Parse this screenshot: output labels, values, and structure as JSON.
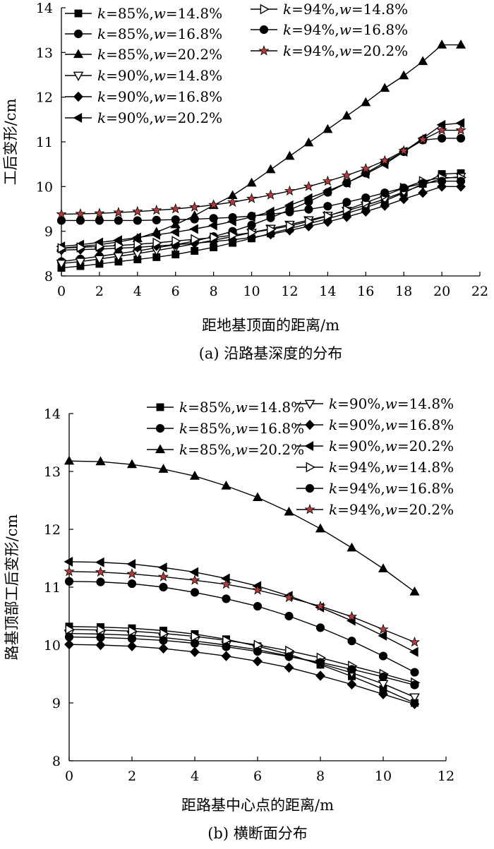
{
  "chart_data": [
    {
      "type": "line",
      "caption": "(a) 沿路基深度的分布",
      "xlabel": "距地基顶面的距离/m",
      "ylabel": "工后变形/cm",
      "xlim": [
        0,
        22
      ],
      "ylim": [
        8,
        14
      ],
      "xticks": [
        0,
        2,
        4,
        6,
        8,
        10,
        12,
        14,
        16,
        18,
        20,
        22
      ],
      "yticks": [
        8,
        9,
        10,
        11,
        12,
        13,
        14
      ],
      "x": [
        0,
        1,
        2,
        3,
        4,
        5,
        6,
        7,
        8,
        9,
        10,
        11,
        12,
        13,
        14,
        15,
        16,
        17,
        18,
        19,
        20,
        21
      ],
      "series": [
        {
          "k": "85%",
          "w": "14.8%",
          "marker": "square",
          "values": [
            8.18,
            8.22,
            8.27,
            8.32,
            8.37,
            8.42,
            8.48,
            8.56,
            8.64,
            8.74,
            8.84,
            8.95,
            9.06,
            9.17,
            9.28,
            9.4,
            9.53,
            9.68,
            9.86,
            10.06,
            10.28,
            10.3
          ]
        },
        {
          "k": "85%",
          "w": "16.8%",
          "marker": "circle",
          "values": [
            8.32,
            8.38,
            8.44,
            8.5,
            8.56,
            8.63,
            8.7,
            8.78,
            8.88,
            9.0,
            9.14,
            9.3,
            9.48,
            9.66,
            9.87,
            10.08,
            10.3,
            10.54,
            10.78,
            11.04,
            11.08,
            11.08
          ]
        },
        {
          "k": "85%",
          "w": "20.2%",
          "marker": "triangle",
          "values": [
            8.62,
            8.66,
            8.7,
            8.76,
            8.84,
            8.98,
            9.15,
            9.35,
            9.58,
            9.8,
            10.08,
            10.38,
            10.68,
            10.98,
            11.28,
            11.58,
            11.88,
            12.2,
            12.48,
            12.8,
            13.17,
            13.17
          ]
        },
        {
          "k": "90%",
          "w": "14.8%",
          "marker": "tri-down-open",
          "values": [
            8.28,
            8.32,
            8.38,
            8.44,
            8.5,
            8.57,
            8.64,
            8.72,
            8.8,
            8.88,
            8.97,
            9.06,
            9.15,
            9.25,
            9.35,
            9.46,
            9.58,
            9.72,
            9.88,
            10.04,
            10.18,
            10.22
          ]
        },
        {
          "k": "90%",
          "w": "16.8%",
          "marker": "diamond",
          "values": [
            8.58,
            8.59,
            8.6,
            8.62,
            8.64,
            8.67,
            8.7,
            8.73,
            8.77,
            8.81,
            8.86,
            8.93,
            9.02,
            9.11,
            9.21,
            9.32,
            9.44,
            9.57,
            9.72,
            9.86,
            10.0,
            10.0
          ]
        },
        {
          "k": "90%",
          "w": "20.2%",
          "marker": "tri-left",
          "values": [
            8.66,
            8.7,
            8.75,
            8.8,
            8.86,
            8.92,
            8.98,
            9.05,
            9.13,
            9.22,
            9.32,
            9.44,
            9.58,
            9.74,
            9.9,
            10.08,
            10.28,
            10.5,
            10.78,
            11.08,
            11.38,
            11.42
          ]
        },
        {
          "k": "94%",
          "w": "14.8%",
          "marker": "tri-right-open",
          "values": [
            8.62,
            8.64,
            8.66,
            8.68,
            8.71,
            8.74,
            8.78,
            8.82,
            8.86,
            8.91,
            8.97,
            9.04,
            9.12,
            9.22,
            9.34,
            9.48,
            9.64,
            9.8,
            9.97,
            10.12,
            10.2,
            10.2
          ]
        },
        {
          "k": "94%",
          "w": "16.8%",
          "marker": "circle",
          "values": [
            9.24,
            9.24,
            9.24,
            9.24,
            9.24,
            9.25,
            9.26,
            9.27,
            9.29,
            9.31,
            9.34,
            9.38,
            9.43,
            9.49,
            9.56,
            9.65,
            9.75,
            9.86,
            9.97,
            10.07,
            10.12,
            10.12
          ]
        },
        {
          "k": "94%",
          "w": "20.2%",
          "marker": "star",
          "values": [
            9.38,
            9.39,
            9.4,
            9.42,
            9.44,
            9.47,
            9.5,
            9.54,
            9.59,
            9.65,
            9.73,
            9.81,
            9.9,
            10.0,
            10.12,
            10.25,
            10.4,
            10.58,
            10.8,
            11.05,
            11.26,
            11.26
          ]
        }
      ]
    },
    {
      "type": "line",
      "caption": "(b) 横断面分布",
      "xlabel": "距路基中心点的距离/m",
      "ylabel": "路基顶部工后变形/cm",
      "xlim": [
        0,
        12
      ],
      "ylim": [
        8,
        14
      ],
      "xticks": [
        0,
        2,
        4,
        6,
        8,
        10,
        12
      ],
      "yticks": [
        8,
        9,
        10,
        11,
        12,
        13,
        14
      ],
      "x": [
        0,
        1,
        2,
        3,
        4,
        5,
        6,
        7,
        8,
        9,
        10,
        11
      ],
      "series": [
        {
          "k": "85%",
          "w": "14.8%",
          "marker": "square",
          "values": [
            10.32,
            10.31,
            10.29,
            10.25,
            10.19,
            10.1,
            9.98,
            9.84,
            9.66,
            9.46,
            9.24,
            9.0
          ]
        },
        {
          "k": "85%",
          "w": "16.8%",
          "marker": "circle",
          "values": [
            11.1,
            11.09,
            11.06,
            11.0,
            10.91,
            10.8,
            10.67,
            10.5,
            10.3,
            10.07,
            9.81,
            9.53
          ]
        },
        {
          "k": "85%",
          "w": "20.2%",
          "marker": "triangle",
          "values": [
            13.18,
            13.17,
            13.12,
            13.04,
            12.92,
            12.75,
            12.55,
            12.3,
            12.01,
            11.68,
            11.32,
            10.92
          ]
        },
        {
          "k": "90%",
          "w": "14.8%",
          "marker": "tri-down-open",
          "values": [
            10.2,
            10.19,
            10.17,
            10.13,
            10.07,
            10.0,
            9.92,
            9.81,
            9.68,
            9.52,
            9.33,
            9.1
          ]
        },
        {
          "k": "90%",
          "w": "16.8%",
          "marker": "diamond",
          "values": [
            10.01,
            10.0,
            9.98,
            9.94,
            9.88,
            9.81,
            9.72,
            9.61,
            9.47,
            9.32,
            9.15,
            8.98
          ]
        },
        {
          "k": "90%",
          "w": "20.2%",
          "marker": "tri-left",
          "values": [
            11.44,
            11.43,
            11.4,
            11.34,
            11.26,
            11.15,
            11.02,
            10.85,
            10.65,
            10.42,
            10.16,
            9.88
          ]
        },
        {
          "k": "94%",
          "w": "14.8%",
          "marker": "tri-right-open",
          "values": [
            10.27,
            10.26,
            10.24,
            10.2,
            10.15,
            10.08,
            10.0,
            9.9,
            9.78,
            9.64,
            9.5,
            9.35
          ]
        },
        {
          "k": "94%",
          "w": "16.8%",
          "marker": "circle",
          "values": [
            10.14,
            10.13,
            10.11,
            10.08,
            10.03,
            9.97,
            9.89,
            9.8,
            9.7,
            9.58,
            9.45,
            9.31
          ]
        },
        {
          "k": "94%",
          "w": "20.2%",
          "marker": "star",
          "values": [
            11.27,
            11.26,
            11.23,
            11.18,
            11.12,
            11.05,
            10.95,
            10.82,
            10.67,
            10.49,
            10.27,
            10.05
          ]
        }
      ]
    }
  ]
}
